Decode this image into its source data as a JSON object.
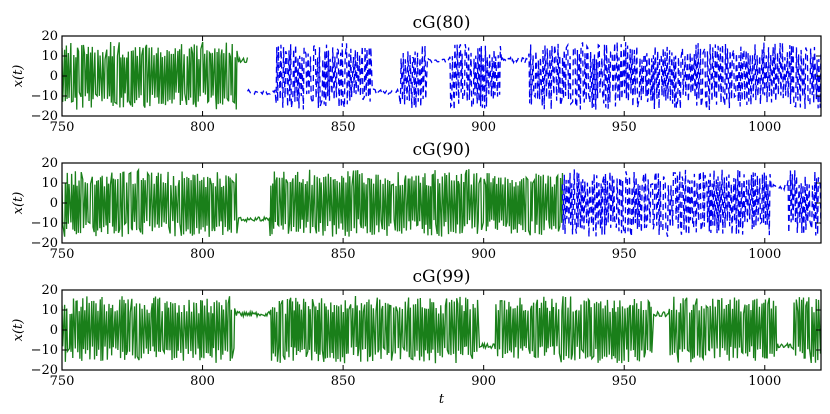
{
  "chart_data": [
    {
      "type": "line",
      "title": "cG(80)",
      "ylabel": "x(t)",
      "xlabel": "",
      "xlim": [
        750,
        1020
      ],
      "ylim": [
        -20,
        20
      ],
      "xticks": [
        750,
        800,
        850,
        900,
        950,
        1000
      ],
      "yticks": [
        20,
        10,
        0,
        -10,
        -20
      ],
      "xtick_labels": [
        "750",
        "800",
        "850",
        "900",
        "950",
        "1000"
      ],
      "ytick_labels": [
        "20",
        "10",
        "0",
        "−10",
        "−20"
      ],
      "grid": false,
      "series": [
        {
          "style": "solid",
          "color": "#1a7f1a",
          "t_start": 750,
          "t_end": 816,
          "bursts": [
            [
              750,
              815
            ]
          ],
          "flats": [
            [
              812,
              816
            ]
          ]
        },
        {
          "style": "dashed",
          "color": "#0000ee",
          "t_start": 816,
          "t_end": 1020,
          "bursts": [
            [
              826,
              860
            ],
            [
              870,
              880
            ],
            [
              888,
              906
            ],
            [
              916,
              1020
            ]
          ],
          "flats": [
            [
              816,
              826
            ],
            [
              906,
              914
            ]
          ]
        }
      ]
    },
    {
      "type": "line",
      "title": "cG(90)",
      "ylabel": "x(t)",
      "xlabel": "",
      "xlim": [
        750,
        1020
      ],
      "ylim": [
        -20,
        20
      ],
      "xticks": [
        750,
        800,
        850,
        900,
        950,
        1000
      ],
      "yticks": [
        20,
        10,
        0,
        -10,
        -20
      ],
      "xtick_labels": [
        "750",
        "800",
        "850",
        "900",
        "950",
        "1000"
      ],
      "ytick_labels": [
        "20",
        "10",
        "0",
        "−10",
        "−20"
      ],
      "grid": false,
      "series": [
        {
          "style": "solid",
          "color": "#1a7f1a",
          "t_start": 750,
          "t_end": 928,
          "bursts": [
            [
              750,
              812
            ],
            [
              824,
              928
            ]
          ],
          "flats": [
            [
              812,
              824
            ]
          ]
        },
        {
          "style": "dashed",
          "color": "#0000ee",
          "t_start": 928,
          "t_end": 1020,
          "bursts": [
            [
              928,
              1020
            ]
          ],
          "flats": [
            [
              1002,
              1008
            ]
          ]
        }
      ]
    },
    {
      "type": "line",
      "title": "cG(99)",
      "ylabel": "x(t)",
      "xlabel": "t",
      "xlim": [
        750,
        1020
      ],
      "ylim": [
        -20,
        20
      ],
      "xticks": [
        750,
        800,
        850,
        900,
        950,
        1000
      ],
      "yticks": [
        20,
        10,
        0,
        -10,
        -20
      ],
      "xtick_labels": [
        "750",
        "800",
        "850",
        "900",
        "950",
        "1000"
      ],
      "ytick_labels": [
        "20",
        "10",
        "0",
        "−10",
        "−20"
      ],
      "grid": false,
      "series": [
        {
          "style": "solid",
          "color": "#1a7f1a",
          "t_start": 750,
          "t_end": 1020,
          "bursts": [
            [
              750,
              812
            ],
            [
              824,
              1020
            ]
          ],
          "flats": [
            [
              812,
              824
            ],
            [
              898,
              904
            ],
            [
              960,
              966
            ],
            [
              1004,
              1010
            ]
          ]
        }
      ]
    }
  ]
}
